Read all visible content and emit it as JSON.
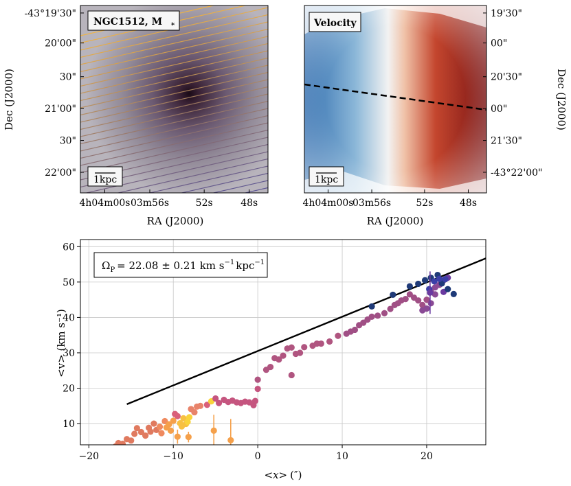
{
  "chart_data": [
    {
      "type": "image",
      "panel": "stellar-mass-map",
      "label": "NGC1512, M",
      "label_subscript": "*",
      "xlabel": "RA (J2000)",
      "ylabel": "Dec (J2000)",
      "xticks": [
        "4h04m00s",
        "03m56s",
        "52s",
        "48s"
      ],
      "yticks": [
        "-43°19'30\"",
        "20'00\"",
        "30\"",
        "21'00\"",
        "30\"",
        "22'00\""
      ],
      "scalebar": "1kpc",
      "overlay": "pseudo-slits"
    },
    {
      "type": "image",
      "panel": "velocity-map",
      "label": "Velocity",
      "xlabel": "RA (J2000)",
      "ylabel": "Dec (J2000)",
      "xticks": [
        "4h04m00s",
        "03m56s",
        "52s",
        "48s"
      ],
      "yticks": [
        "19'30\"",
        "00\"",
        "20'30\"",
        "00\"",
        "21'30\"",
        "-43°22'00\""
      ],
      "scalebar": "1kpc",
      "overlay": "major-axis-dashed-line"
    },
    {
      "type": "scatter",
      "xlabel_main": "<x>",
      "xlabel_unit": "(″)",
      "ylabel": "<v> (km s⁻¹)",
      "xlim": [
        -21,
        27
      ],
      "ylim": [
        4,
        62
      ],
      "xticks": [
        -20,
        -10,
        0,
        10,
        20
      ],
      "yticks": [
        10,
        20,
        30,
        40,
        50,
        60
      ],
      "grid": true,
      "annotation": "Ω = 22.08 ± 0.21 km s⁻¹ kpc⁻¹",
      "annotation_parts": {
        "symbol": "Ω",
        "sub": "P",
        "value": "= 22.08 ± 0.21 km s",
        "exp1": "−1",
        "unit2": "kpc",
        "exp2": "−1"
      },
      "fit_line": {
        "slope": 0.97,
        "intercept": 30.5,
        "color": "#000000"
      },
      "points": [
        {
          "x": -16.8,
          "y": 3.6,
          "c": "#e07a5f"
        },
        {
          "x": -16.5,
          "y": 4.5,
          "c": "#e07a5f"
        },
        {
          "x": -16.0,
          "y": 4.3,
          "c": "#e07a5f"
        },
        {
          "x": -15.5,
          "y": 5.6,
          "c": "#e07a5f"
        },
        {
          "x": -15.0,
          "y": 5.2,
          "c": "#e07a5f"
        },
        {
          "x": -14.6,
          "y": 7.1,
          "c": "#e07a5f"
        },
        {
          "x": -14.3,
          "y": 8.7,
          "c": "#e07a5f"
        },
        {
          "x": -13.8,
          "y": 7.6,
          "c": "#e07a5f"
        },
        {
          "x": -13.3,
          "y": 6.6,
          "c": "#e07a5f"
        },
        {
          "x": -12.9,
          "y": 8.8,
          "c": "#e07a5f"
        },
        {
          "x": -12.7,
          "y": 7.7,
          "c": "#e07a5f"
        },
        {
          "x": -12.3,
          "y": 10.0,
          "c": "#e07a5f"
        },
        {
          "x": -12.0,
          "y": 8.2,
          "c": "#e07a5f"
        },
        {
          "x": -11.6,
          "y": 9.1,
          "c": "#ef8a5f"
        },
        {
          "x": -11.4,
          "y": 7.3,
          "c": "#ef8a5f"
        },
        {
          "x": -11.0,
          "y": 10.7,
          "c": "#ef8a5f"
        },
        {
          "x": -10.8,
          "y": 8.9,
          "c": "#f5a04a"
        },
        {
          "x": -10.5,
          "y": 9.8,
          "c": "#f5a04a"
        },
        {
          "x": -10.3,
          "y": 8.0,
          "c": "#f5a04a"
        },
        {
          "x": -10.0,
          "y": 10.8,
          "c": "#f5a04a"
        },
        {
          "x": -9.8,
          "y": 12.7,
          "c": "#d9607a"
        },
        {
          "x": -9.5,
          "y": 12.1,
          "c": "#d9607a"
        },
        {
          "x": -9.2,
          "y": 10.1,
          "c": "#f7c042"
        },
        {
          "x": -9.0,
          "y": 9.2,
          "c": "#f7c042"
        },
        {
          "x": -8.8,
          "y": 11.5,
          "c": "#f7c042"
        },
        {
          "x": -8.5,
          "y": 9.9,
          "c": "#f7c042"
        },
        {
          "x": -8.3,
          "y": 10.5,
          "c": "#f9d33b"
        },
        {
          "x": -8.1,
          "y": 11.8,
          "c": "#f9d33b"
        },
        {
          "x": -9.5,
          "y": 6.3,
          "c": "#f5a04a",
          "err": 2.0
        },
        {
          "x": -8.2,
          "y": 6.2,
          "c": "#f5a04a",
          "err": 1.5
        },
        {
          "x": -7.9,
          "y": 14.1,
          "c": "#e8836a"
        },
        {
          "x": -7.5,
          "y": 13.2,
          "c": "#e8836a"
        },
        {
          "x": -7.2,
          "y": 14.8,
          "c": "#e8836a"
        },
        {
          "x": -6.8,
          "y": 15.0,
          "c": "#e8836a"
        },
        {
          "x": -6.0,
          "y": 15.3,
          "c": "#d9607a"
        },
        {
          "x": -5.5,
          "y": 16.3,
          "c": "#f9d33b"
        },
        {
          "x": -5.0,
          "y": 17.1,
          "c": "#c5557f"
        },
        {
          "x": -4.6,
          "y": 15.8,
          "c": "#c5557f"
        },
        {
          "x": -4.0,
          "y": 16.7,
          "c": "#c5557f"
        },
        {
          "x": -3.5,
          "y": 16.1,
          "c": "#c5557f"
        },
        {
          "x": -3.0,
          "y": 16.5,
          "c": "#c5557f"
        },
        {
          "x": -2.5,
          "y": 16.0,
          "c": "#c5557f"
        },
        {
          "x": -2.0,
          "y": 15.8,
          "c": "#c5557f"
        },
        {
          "x": -1.5,
          "y": 16.2,
          "c": "#c5557f"
        },
        {
          "x": -1.0,
          "y": 16.0,
          "c": "#c5557f"
        },
        {
          "x": -0.5,
          "y": 15.2,
          "c": "#c5557f"
        },
        {
          "x": -0.3,
          "y": 16.4,
          "c": "#c5557f"
        },
        {
          "x": 0.0,
          "y": 19.8,
          "c": "#c5557f"
        },
        {
          "x": -5.2,
          "y": 8.0,
          "c": "#f5a04a",
          "err": 4.5
        },
        {
          "x": -3.2,
          "y": 5.3,
          "c": "#f5a04a",
          "err": 6.0
        },
        {
          "x": 0.0,
          "y": 22.4,
          "c": "#b05580"
        },
        {
          "x": 1.0,
          "y": 25.2,
          "c": "#b05580"
        },
        {
          "x": 1.5,
          "y": 26.0,
          "c": "#b05580"
        },
        {
          "x": 2.0,
          "y": 28.5,
          "c": "#b05580"
        },
        {
          "x": 2.5,
          "y": 28.1,
          "c": "#b05580"
        },
        {
          "x": 3.0,
          "y": 29.2,
          "c": "#b05580"
        },
        {
          "x": 3.5,
          "y": 31.2,
          "c": "#b05580"
        },
        {
          "x": 4.0,
          "y": 31.5,
          "c": "#b05580"
        },
        {
          "x": 4.0,
          "y": 23.7,
          "c": "#b05580"
        },
        {
          "x": 4.5,
          "y": 29.7,
          "c": "#b05580"
        },
        {
          "x": 5.0,
          "y": 30.0,
          "c": "#b05580"
        },
        {
          "x": 5.5,
          "y": 31.6,
          "c": "#b05580"
        },
        {
          "x": 6.5,
          "y": 32.0,
          "c": "#b05580"
        },
        {
          "x": 7.0,
          "y": 32.6,
          "c": "#b05580"
        },
        {
          "x": 7.5,
          "y": 32.6,
          "c": "#b05580"
        },
        {
          "x": 8.5,
          "y": 33.2,
          "c": "#b05580"
        },
        {
          "x": 9.5,
          "y": 34.8,
          "c": "#b05580"
        },
        {
          "x": 10.5,
          "y": 35.4,
          "c": "#a04f85"
        },
        {
          "x": 11.0,
          "y": 36.0,
          "c": "#a04f85"
        },
        {
          "x": 11.5,
          "y": 36.5,
          "c": "#a04f85"
        },
        {
          "x": 12.0,
          "y": 37.8,
          "c": "#a04f85"
        },
        {
          "x": 12.5,
          "y": 38.5,
          "c": "#a04f85"
        },
        {
          "x": 13.0,
          "y": 39.4,
          "c": "#a04f85"
        },
        {
          "x": 13.5,
          "y": 40.2,
          "c": "#a04f85"
        },
        {
          "x": 14.2,
          "y": 40.5,
          "c": "#a04f85"
        },
        {
          "x": 15.0,
          "y": 41.2,
          "c": "#a04f85"
        },
        {
          "x": 15.7,
          "y": 42.4,
          "c": "#a04f85"
        },
        {
          "x": 16.2,
          "y": 43.5,
          "c": "#a04f85"
        },
        {
          "x": 16.6,
          "y": 44.0,
          "c": "#a04f85"
        },
        {
          "x": 17.0,
          "y": 44.8,
          "c": "#a04f85"
        },
        {
          "x": 17.5,
          "y": 45.2,
          "c": "#a04f85"
        },
        {
          "x": 18.0,
          "y": 46.5,
          "c": "#a04f85"
        },
        {
          "x": 18.5,
          "y": 45.6,
          "c": "#a04f85"
        },
        {
          "x": 19.0,
          "y": 44.8,
          "c": "#a04f85"
        },
        {
          "x": 19.5,
          "y": 43.5,
          "c": "#a04f85"
        },
        {
          "x": 20.0,
          "y": 45.0,
          "c": "#a04f85"
        },
        {
          "x": 20.5,
          "y": 47.3,
          "c": "#8a4a95"
        },
        {
          "x": 21.0,
          "y": 48.5,
          "c": "#8a4a95"
        },
        {
          "x": 21.5,
          "y": 49.2,
          "c": "#8a4a95"
        },
        {
          "x": 22.0,
          "y": 50.5,
          "c": "#8a4a95"
        },
        {
          "x": 22.5,
          "y": 51.2,
          "c": "#6a3aa0"
        },
        {
          "x": 22.0,
          "y": 47.2,
          "c": "#6a3aa0"
        },
        {
          "x": 21.0,
          "y": 46.5,
          "c": "#8a4a95"
        },
        {
          "x": 20.5,
          "y": 44.0,
          "c": "#8a4a95"
        },
        {
          "x": 20.0,
          "y": 42.5,
          "c": "#8a4a95"
        },
        {
          "x": 19.5,
          "y": 42.0,
          "c": "#8a4a95"
        },
        {
          "x": 13.5,
          "y": 43.1,
          "c": "#1f3a78"
        },
        {
          "x": 16.0,
          "y": 46.4,
          "c": "#1f3a78"
        },
        {
          "x": 18.0,
          "y": 48.8,
          "c": "#1f3a78"
        },
        {
          "x": 19.0,
          "y": 49.5,
          "c": "#1f3a78"
        },
        {
          "x": 19.8,
          "y": 50.5,
          "c": "#1f3a78"
        },
        {
          "x": 20.5,
          "y": 51.2,
          "c": "#1f3a78"
        },
        {
          "x": 21.3,
          "y": 52.0,
          "c": "#1f3a78"
        },
        {
          "x": 21.8,
          "y": 49.6,
          "c": "#1f3a78"
        },
        {
          "x": 22.5,
          "y": 48.0,
          "c": "#1f3a78"
        },
        {
          "x": 23.2,
          "y": 46.6,
          "c": "#1f3a78"
        },
        {
          "x": 20.9,
          "y": 50.2,
          "c": "#3b3fa8"
        },
        {
          "x": 21.5,
          "y": 50.9,
          "c": "#3b3fa8"
        },
        {
          "x": 22.2,
          "y": 50.8,
          "c": "#3b3fa8"
        },
        {
          "x": 20.3,
          "y": 48.0,
          "c": "#3b3fa8"
        },
        {
          "x": 20.4,
          "y": 47.0,
          "c": "#6a3aa0",
          "err": 6.0
        }
      ]
    }
  ]
}
